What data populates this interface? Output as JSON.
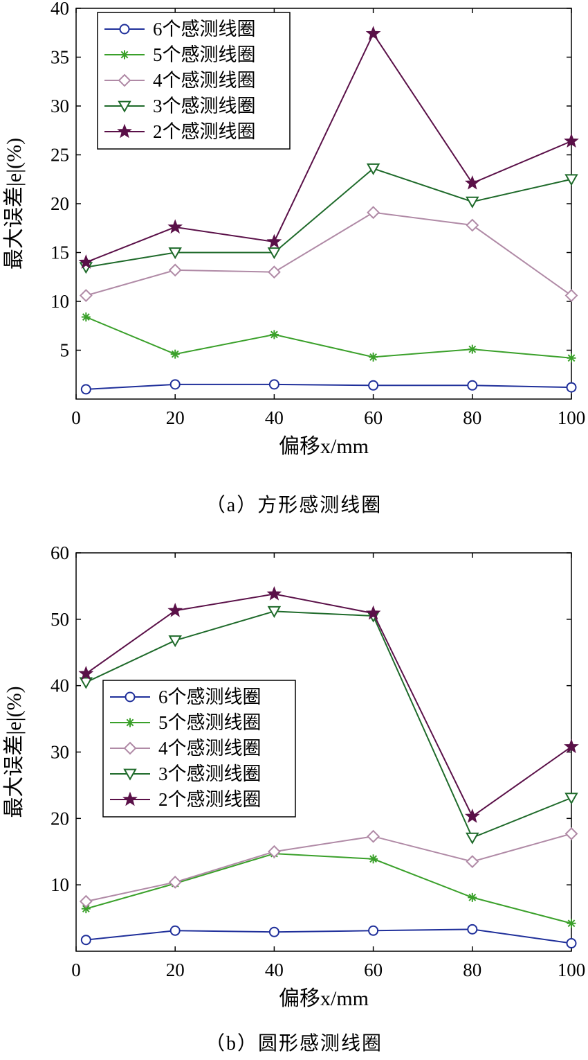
{
  "chart_data": [
    {
      "type": "line",
      "caption": "（a）方形感测线圈",
      "xlabel": "偏移x/mm",
      "ylabel": "最大误差|e|(%)",
      "xlim": [
        0,
        100
      ],
      "ylim": [
        0,
        40
      ],
      "xticks": [
        "0",
        "20",
        "40",
        "60",
        "80",
        "100"
      ],
      "yticks": [
        "5",
        "10",
        "15",
        "20",
        "25",
        "30",
        "35",
        "40"
      ],
      "legend_position": "top-left",
      "x": [
        2,
        20,
        40,
        60,
        80,
        100
      ],
      "series": [
        {
          "name": "6个感测线圈",
          "marker": "circle",
          "color": "#1f2f9a",
          "values": [
            1.0,
            1.5,
            1.5,
            1.4,
            1.4,
            1.2
          ]
        },
        {
          "name": "5个感测线圈",
          "marker": "asterisk",
          "color": "#3aa02a",
          "values": [
            8.4,
            4.6,
            6.6,
            4.3,
            5.1,
            4.2
          ]
        },
        {
          "name": "4个感测线圈",
          "marker": "diamond",
          "color": "#b08aa6",
          "values": [
            10.6,
            13.2,
            13.0,
            19.1,
            17.8,
            10.6
          ]
        },
        {
          "name": "3个感测线圈",
          "marker": "triangle-down",
          "color": "#1e6a2a",
          "values": [
            13.5,
            15.0,
            15.0,
            23.6,
            20.2,
            22.5
          ]
        },
        {
          "name": "2个感测线圈",
          "marker": "star",
          "color": "#5a1048",
          "values": [
            14.0,
            17.6,
            16.1,
            37.4,
            22.1,
            26.4
          ]
        }
      ]
    },
    {
      "type": "line",
      "caption": "（b）圆形感测线圈",
      "xlabel": "偏移x/mm",
      "ylabel": "最大误差|e|(%)",
      "xlim": [
        0,
        100
      ],
      "ylim": [
        0,
        60
      ],
      "xticks": [
        "0",
        "20",
        "40",
        "60",
        "80",
        "100"
      ],
      "yticks": [
        "10",
        "20",
        "30",
        "40",
        "50",
        "60"
      ],
      "legend_position": "center-left",
      "x": [
        2,
        20,
        40,
        60,
        80,
        100
      ],
      "series": [
        {
          "name": "6个感测线圈",
          "marker": "circle",
          "color": "#1f2f9a",
          "values": [
            1.7,
            3.1,
            2.9,
            3.1,
            3.3,
            1.2
          ]
        },
        {
          "name": "5个感测线圈",
          "marker": "asterisk",
          "color": "#3aa02a",
          "values": [
            6.4,
            10.2,
            14.7,
            13.9,
            8.1,
            4.2
          ]
        },
        {
          "name": "4个感测线圈",
          "marker": "diamond",
          "color": "#b08aa6",
          "values": [
            7.5,
            10.4,
            15.0,
            17.3,
            13.5,
            17.7
          ]
        },
        {
          "name": "3个感测线圈",
          "marker": "triangle-down",
          "color": "#1e6a2a",
          "values": [
            40.5,
            46.8,
            51.2,
            50.5,
            17.1,
            23.1
          ]
        },
        {
          "name": "2个感测线圈",
          "marker": "star",
          "color": "#5a1048",
          "values": [
            41.8,
            51.3,
            53.8,
            50.9,
            20.3,
            30.8
          ]
        }
      ]
    }
  ]
}
